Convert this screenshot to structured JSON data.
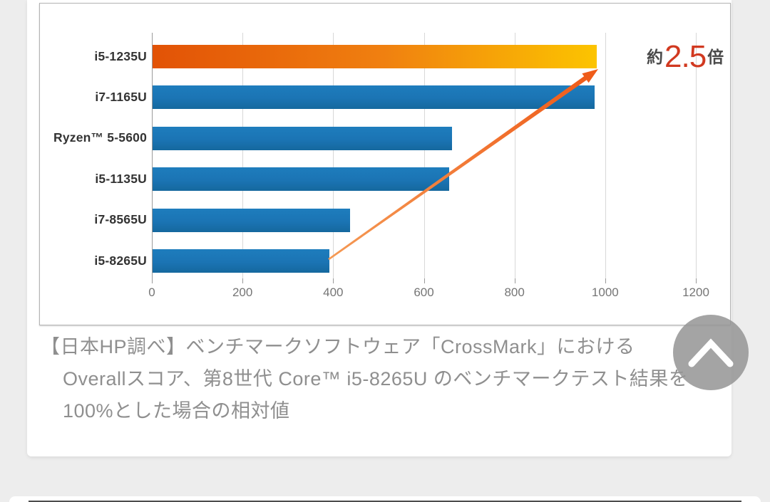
{
  "page": {
    "background_color": "#ededed"
  },
  "chart_data": {
    "type": "bar",
    "orientation": "horizontal",
    "title": "",
    "xlabel": "",
    "ylabel": "",
    "categories": [
      "i5-1235U",
      "i7-1165U",
      "Ryzen™ 5-5600",
      "i5-1135U",
      "i7-8565U",
      "i5-8265U"
    ],
    "values": [
      980,
      975,
      660,
      655,
      435,
      390
    ],
    "xlim": [
      0,
      1200
    ],
    "xticks": [
      0,
      200,
      400,
      600,
      800,
      1000,
      1200
    ],
    "grid": true,
    "legend": "none",
    "highlight_index": 0,
    "bar_color": "#1b74b4",
    "bar_color_top": "#1e7dbd",
    "bar_color_bottom": "#15689e",
    "highlight_gradient": [
      "#e25206",
      "#f08010",
      "#fcc400"
    ],
    "arrow_color_start": "#f59a55",
    "arrow_color_end": "#ef5c1a",
    "annotation": {
      "prefix": "約",
      "value": "2.5",
      "suffix": "倍",
      "text_color": "#4a4a4a",
      "value_color": "#d13920"
    }
  },
  "caption": {
    "lines": [
      "【日本HP調べ】ベンチマークソフトウェア「CrossMark」における",
      "Overallスコア、第8世代 Core™ i5-8265U のベンチマークテスト結果を",
      "100%とした場合の相対値"
    ]
  },
  "scroll_top_button": {
    "icon": "chevron-up"
  }
}
